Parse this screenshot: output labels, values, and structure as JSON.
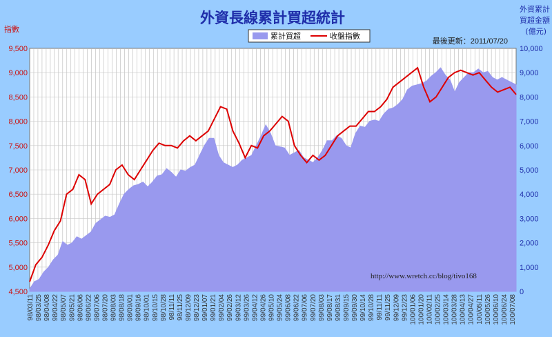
{
  "title": "外資長線累計買超統計",
  "left_axis_label": "指數",
  "right_axis_label_lines": [
    "外資累計",
    "買超金額",
    "(億元)"
  ],
  "update_note": "最後更新：2011/07/20",
  "watermark_url": "http://www.wretch.cc/blog/tivo168",
  "colors": {
    "background": "#99CCFF",
    "plot_background": "#FFFFFF",
    "grid": "#B8B8B8",
    "area_fill": "#9999EE",
    "index_line": "#DD0000",
    "left_ticks": "#CC1111",
    "right_ticks": "#1F2EAA"
  },
  "chart_data": {
    "type": "area",
    "legend": [
      "累計買超",
      "收盤指數"
    ],
    "legend_placement": "top-center",
    "grid": true,
    "y_left": {
      "label": "指數",
      "lim": [
        4500,
        9500
      ],
      "ticks": [
        "4,500",
        "5,000",
        "5,500",
        "6,000",
        "6,500",
        "7,000",
        "7,500",
        "8,000",
        "8,500",
        "9,000",
        "9,500"
      ]
    },
    "y_right": {
      "label": "外資累計買超金額(億元)",
      "lim": [
        0,
        10000
      ],
      "ticks": [
        "0",
        "1,000",
        "2,000",
        "3,000",
        "4,000",
        "5,000",
        "6,000",
        "7,000",
        "8,000",
        "9,000",
        "10,000"
      ]
    },
    "x_ticks": [
      "98/03/11",
      "98/03/25",
      "98/04/08",
      "98/04/22",
      "98/05/07",
      "98/05/21",
      "98/06/06",
      "98/06/22",
      "98/07/06",
      "98/07/20",
      "98/08/03",
      "98/08/18",
      "98/09/01",
      "98/09/16",
      "98/10/01",
      "98/10/15",
      "98/10/28",
      "98/11/11",
      "98/11/25",
      "98/12/09",
      "98/12/23",
      "99/01/07",
      "99/01/21",
      "99/02/04",
      "99/02/26",
      "99/03/12",
      "99/03/26",
      "99/04/12",
      "99/04/26",
      "99/05/10",
      "99/05/24",
      "99/06/08",
      "99/06/22",
      "99/07/06",
      "99/07/20",
      "99/08/03",
      "99/08/17",
      "99/08/31",
      "99/09/15",
      "99/09/30",
      "99/10/14",
      "99/10/28",
      "99/11/11",
      "99/11/25",
      "99/12/09",
      "99/12/23",
      "100/01/06",
      "100/01/20",
      "100/02/11",
      "100/02/25",
      "100/03/14",
      "100/03/28",
      "100/04/13",
      "100/04/27",
      "100/05/11",
      "100/05/26",
      "100/06/10",
      "100/06/24",
      "100/07/08"
    ],
    "series": [
      {
        "name": "累計買超",
        "axis": "right",
        "values": [
          100,
          400,
          500,
          800,
          1000,
          1300,
          1500,
          2050,
          1900,
          2000,
          2250,
          2150,
          2300,
          2450,
          2800,
          2950,
          3100,
          3050,
          3150,
          3600,
          4000,
          4200,
          4350,
          4400,
          4500,
          4300,
          4500,
          4750,
          4800,
          5050,
          4900,
          4700,
          5000,
          4950,
          5100,
          5200,
          5600,
          6000,
          6300,
          6300,
          5600,
          5300,
          5200,
          5100,
          5200,
          5400,
          5500,
          5600,
          6000,
          6400,
          6850,
          6500,
          6000,
          5950,
          5900,
          5600,
          5700,
          5800,
          5500,
          5400,
          5300,
          5500,
          5800,
          6200,
          6200,
          6400,
          6300,
          6000,
          5900,
          6500,
          6800,
          6750,
          7000,
          7050,
          7000,
          7300,
          7500,
          7550,
          7700,
          7900,
          8300,
          8450,
          8500,
          8550,
          8650,
          8850,
          9000,
          9200,
          8900,
          8700,
          8200,
          8600,
          8800,
          9000,
          9000,
          9150,
          9000,
          9050,
          8800,
          8700,
          8800,
          8700,
          8600,
          8500
        ]
      },
      {
        "name": "收盤指數",
        "axis": "left",
        "values": [
          4700,
          5050,
          5200,
          5450,
          5750,
          5950,
          6500,
          6600,
          6900,
          6800,
          6300,
          6500,
          6600,
          6700,
          7000,
          7100,
          6900,
          6800,
          7000,
          7200,
          7400,
          7550,
          7500,
          7500,
          7450,
          7600,
          7700,
          7600,
          7700,
          7800,
          8050,
          8300,
          8250,
          7800,
          7550,
          7250,
          7500,
          7450,
          7700,
          7800,
          7950,
          8100,
          8000,
          7500,
          7300,
          7150,
          7300,
          7200,
          7300,
          7500,
          7700,
          7800,
          7900,
          7900,
          8050,
          8200,
          8200,
          8300,
          8450,
          8700,
          8800,
          8900,
          9000,
          9100,
          8700,
          8400,
          8500,
          8700,
          8900,
          9000,
          9050,
          9000,
          8950,
          9000,
          8850,
          8700,
          8600,
          8650,
          8700,
          8550
        ],
        "note": "values shown at evenly spaced points across the x range"
      }
    ]
  }
}
